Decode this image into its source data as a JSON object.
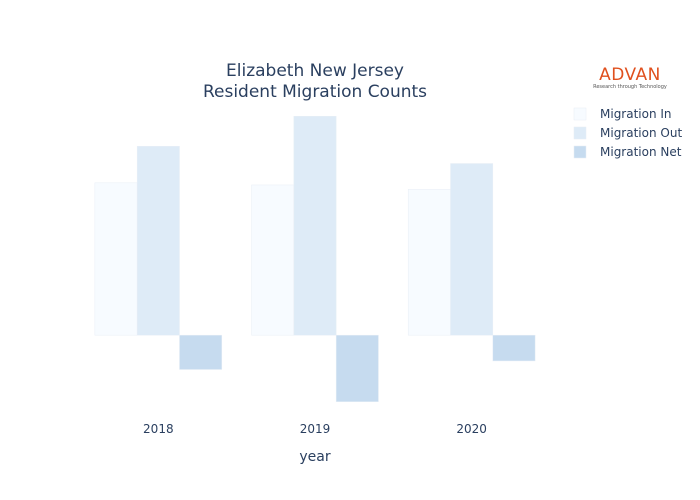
{
  "logo": {
    "brand": "ADVAN",
    "tagline": "Research through Technology",
    "color": "#e0501e"
  },
  "chart_data": {
    "type": "bar",
    "title": "Elizabeth New Jersey",
    "subtitle": "Resident Migration Counts",
    "xlabel": "year",
    "ylabel": "",
    "categories": [
      "2018",
      "2019",
      "2020"
    ],
    "series": [
      {
        "name": "Migration In",
        "values": [
          7100,
          7000,
          6800
        ],
        "color": "#f7fbff"
      },
      {
        "name": "Migration Out",
        "values": [
          8800,
          10200,
          8000
        ],
        "color": "#deebf7"
      },
      {
        "name": "Migration Net",
        "values": [
          -1600,
          -3100,
          -1200
        ],
        "color": "#c6dbef"
      }
    ],
    "ylim": [
      -3300,
      10400
    ],
    "grid": false,
    "legend": "top-right"
  }
}
